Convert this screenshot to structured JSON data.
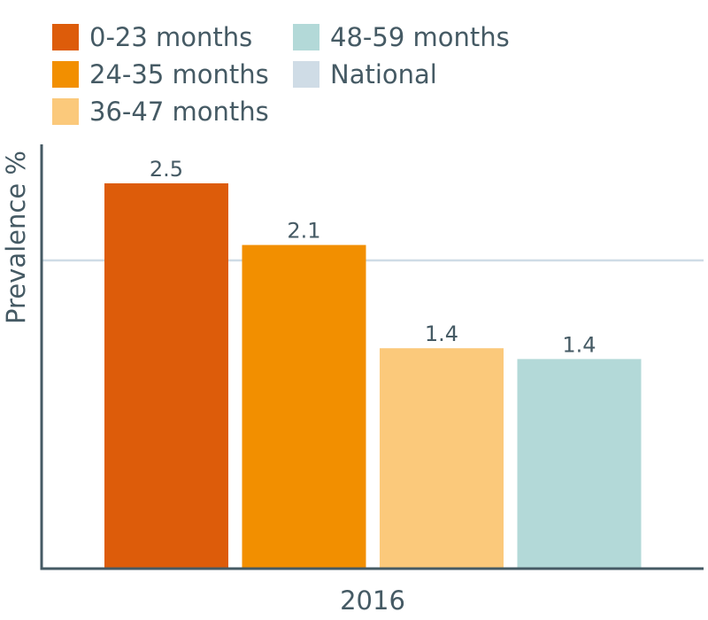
{
  "chart_data": {
    "type": "bar",
    "title": "",
    "ylabel": "Prevalence %",
    "xlabel": "",
    "categories": [
      "2016"
    ],
    "ylim": [
      0,
      3.0
    ],
    "grid": false,
    "legend_position": "top-left",
    "series": [
      {
        "name": "0-23 months",
        "values": [
          2.5
        ],
        "label": "2.5",
        "color": "#dd5c0a"
      },
      {
        "name": "24-35 months",
        "values": [
          2.1
        ],
        "label": "2.1",
        "color": "#f28f00"
      },
      {
        "name": "36-47 months",
        "values": [
          1.43
        ],
        "label": "1.4",
        "color": "#fbc97b"
      },
      {
        "name": "48-59 months",
        "values": [
          1.36
        ],
        "label": "1.4",
        "color": "#b3d9d8"
      }
    ],
    "reference_line": {
      "name": "National",
      "value": 2.0,
      "color": "#cfdce6"
    },
    "colors": {
      "axis": "#455a64",
      "text": "#455a64"
    }
  }
}
